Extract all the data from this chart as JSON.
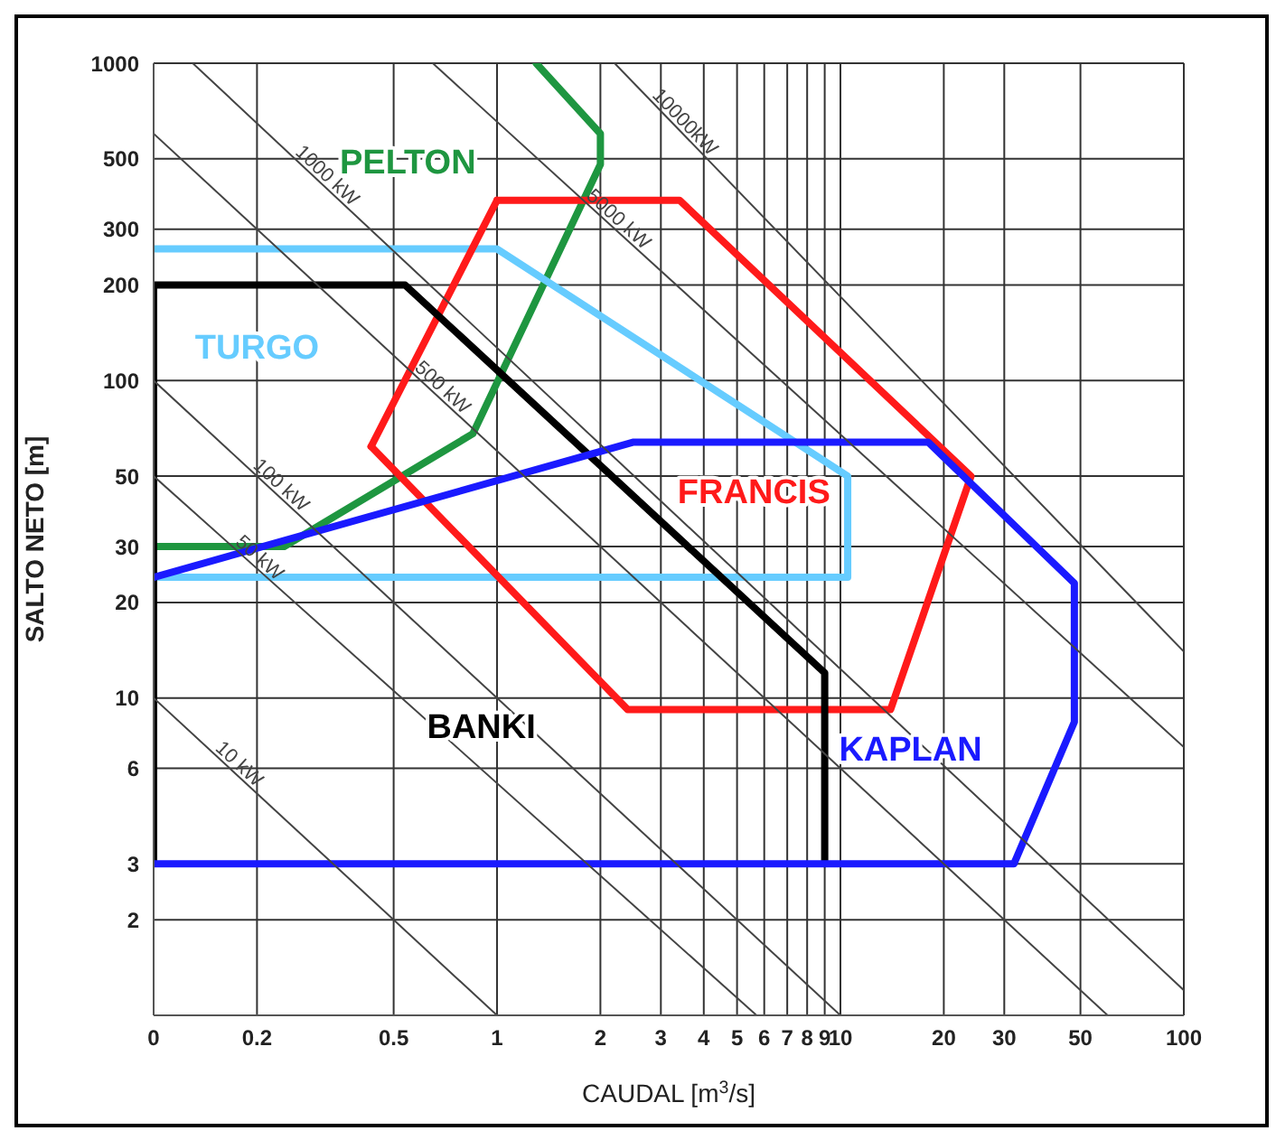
{
  "chart_data": {
    "type": "line",
    "xlabel": "CAUDAL [m$^{3}$/s]",
    "ylabel": "SALTO NETO [m]",
    "log": "xy",
    "xlim": [
      0.1,
      100
    ],
    "ylim": [
      1,
      1000
    ],
    "xticks": [
      {
        "value": 0.1,
        "label": "0"
      },
      0.2,
      0.5,
      1,
      2,
      3,
      4,
      5,
      6,
      7,
      8,
      9,
      10,
      20,
      30,
      50,
      100
    ],
    "yticks": [
      2,
      3,
      6,
      10,
      20,
      30,
      50,
      100,
      200,
      300,
      500,
      1000
    ],
    "grid": true,
    "marker": "none",
    "line_style": "solid",
    "series": [
      {
        "name": "PELTON",
        "color": "#1e9640",
        "x": [
          1.3,
          2,
          2,
          0.85,
          0.24,
          0.1
        ],
        "values": [
          1000,
          600,
          480,
          68,
          30,
          30
        ]
      },
      {
        "name": "TURGO",
        "color": "#66ccff",
        "x": [
          0.1,
          1,
          10.5,
          10.5,
          0.1
        ],
        "values": [
          260,
          260,
          50,
          24,
          24
        ]
      },
      {
        "name": "FRANCIS",
        "color": "#ff1a1a",
        "x": [
          1,
          3.4,
          24,
          14,
          2.4,
          0.43,
          1
        ],
        "values": [
          370,
          370,
          50,
          9.2,
          9.2,
          62,
          370
        ]
      },
      {
        "name": "BANKI",
        "color": "#000000",
        "x": [
          0.1,
          0.1,
          0.54,
          9,
          9
        ],
        "values": [
          3,
          200,
          200,
          12,
          3
        ]
      },
      {
        "name": "KAPLAN",
        "color": "#1a1aff",
        "x": [
          0.1,
          2.5,
          18,
          48,
          48,
          32,
          0.1
        ],
        "values": [
          24,
          64,
          64,
          23,
          8.4,
          3,
          3
        ]
      },
      {
        "name": "10 kW",
        "color": "#444444",
        "x": [
          0.1,
          1
        ],
        "values": [
          10,
          1
        ]
      },
      {
        "name": "50 kW",
        "color": "#444444",
        "x": [
          0.1,
          5.7
        ],
        "values": [
          50,
          1
        ]
      },
      {
        "name": "100 kW",
        "color": "#444444",
        "x": [
          0.1,
          10
        ],
        "values": [
          100,
          1
        ]
      },
      {
        "name": "500 kW",
        "color": "#444444",
        "x": [
          0.1,
          60
        ],
        "values": [
          600,
          1
        ]
      },
      {
        "name": "1000 kW",
        "color": "#444444",
        "x": [
          0.13,
          100
        ],
        "values": [
          1000,
          1.2
        ]
      },
      {
        "name": "5000 kW",
        "color": "#444444",
        "x": [
          0.65,
          100
        ],
        "values": [
          1000,
          7
        ]
      },
      {
        "name": "10000kW",
        "color": "#444444",
        "x": [
          2.2,
          100
        ],
        "values": [
          1000,
          14
        ]
      }
    ]
  }
}
